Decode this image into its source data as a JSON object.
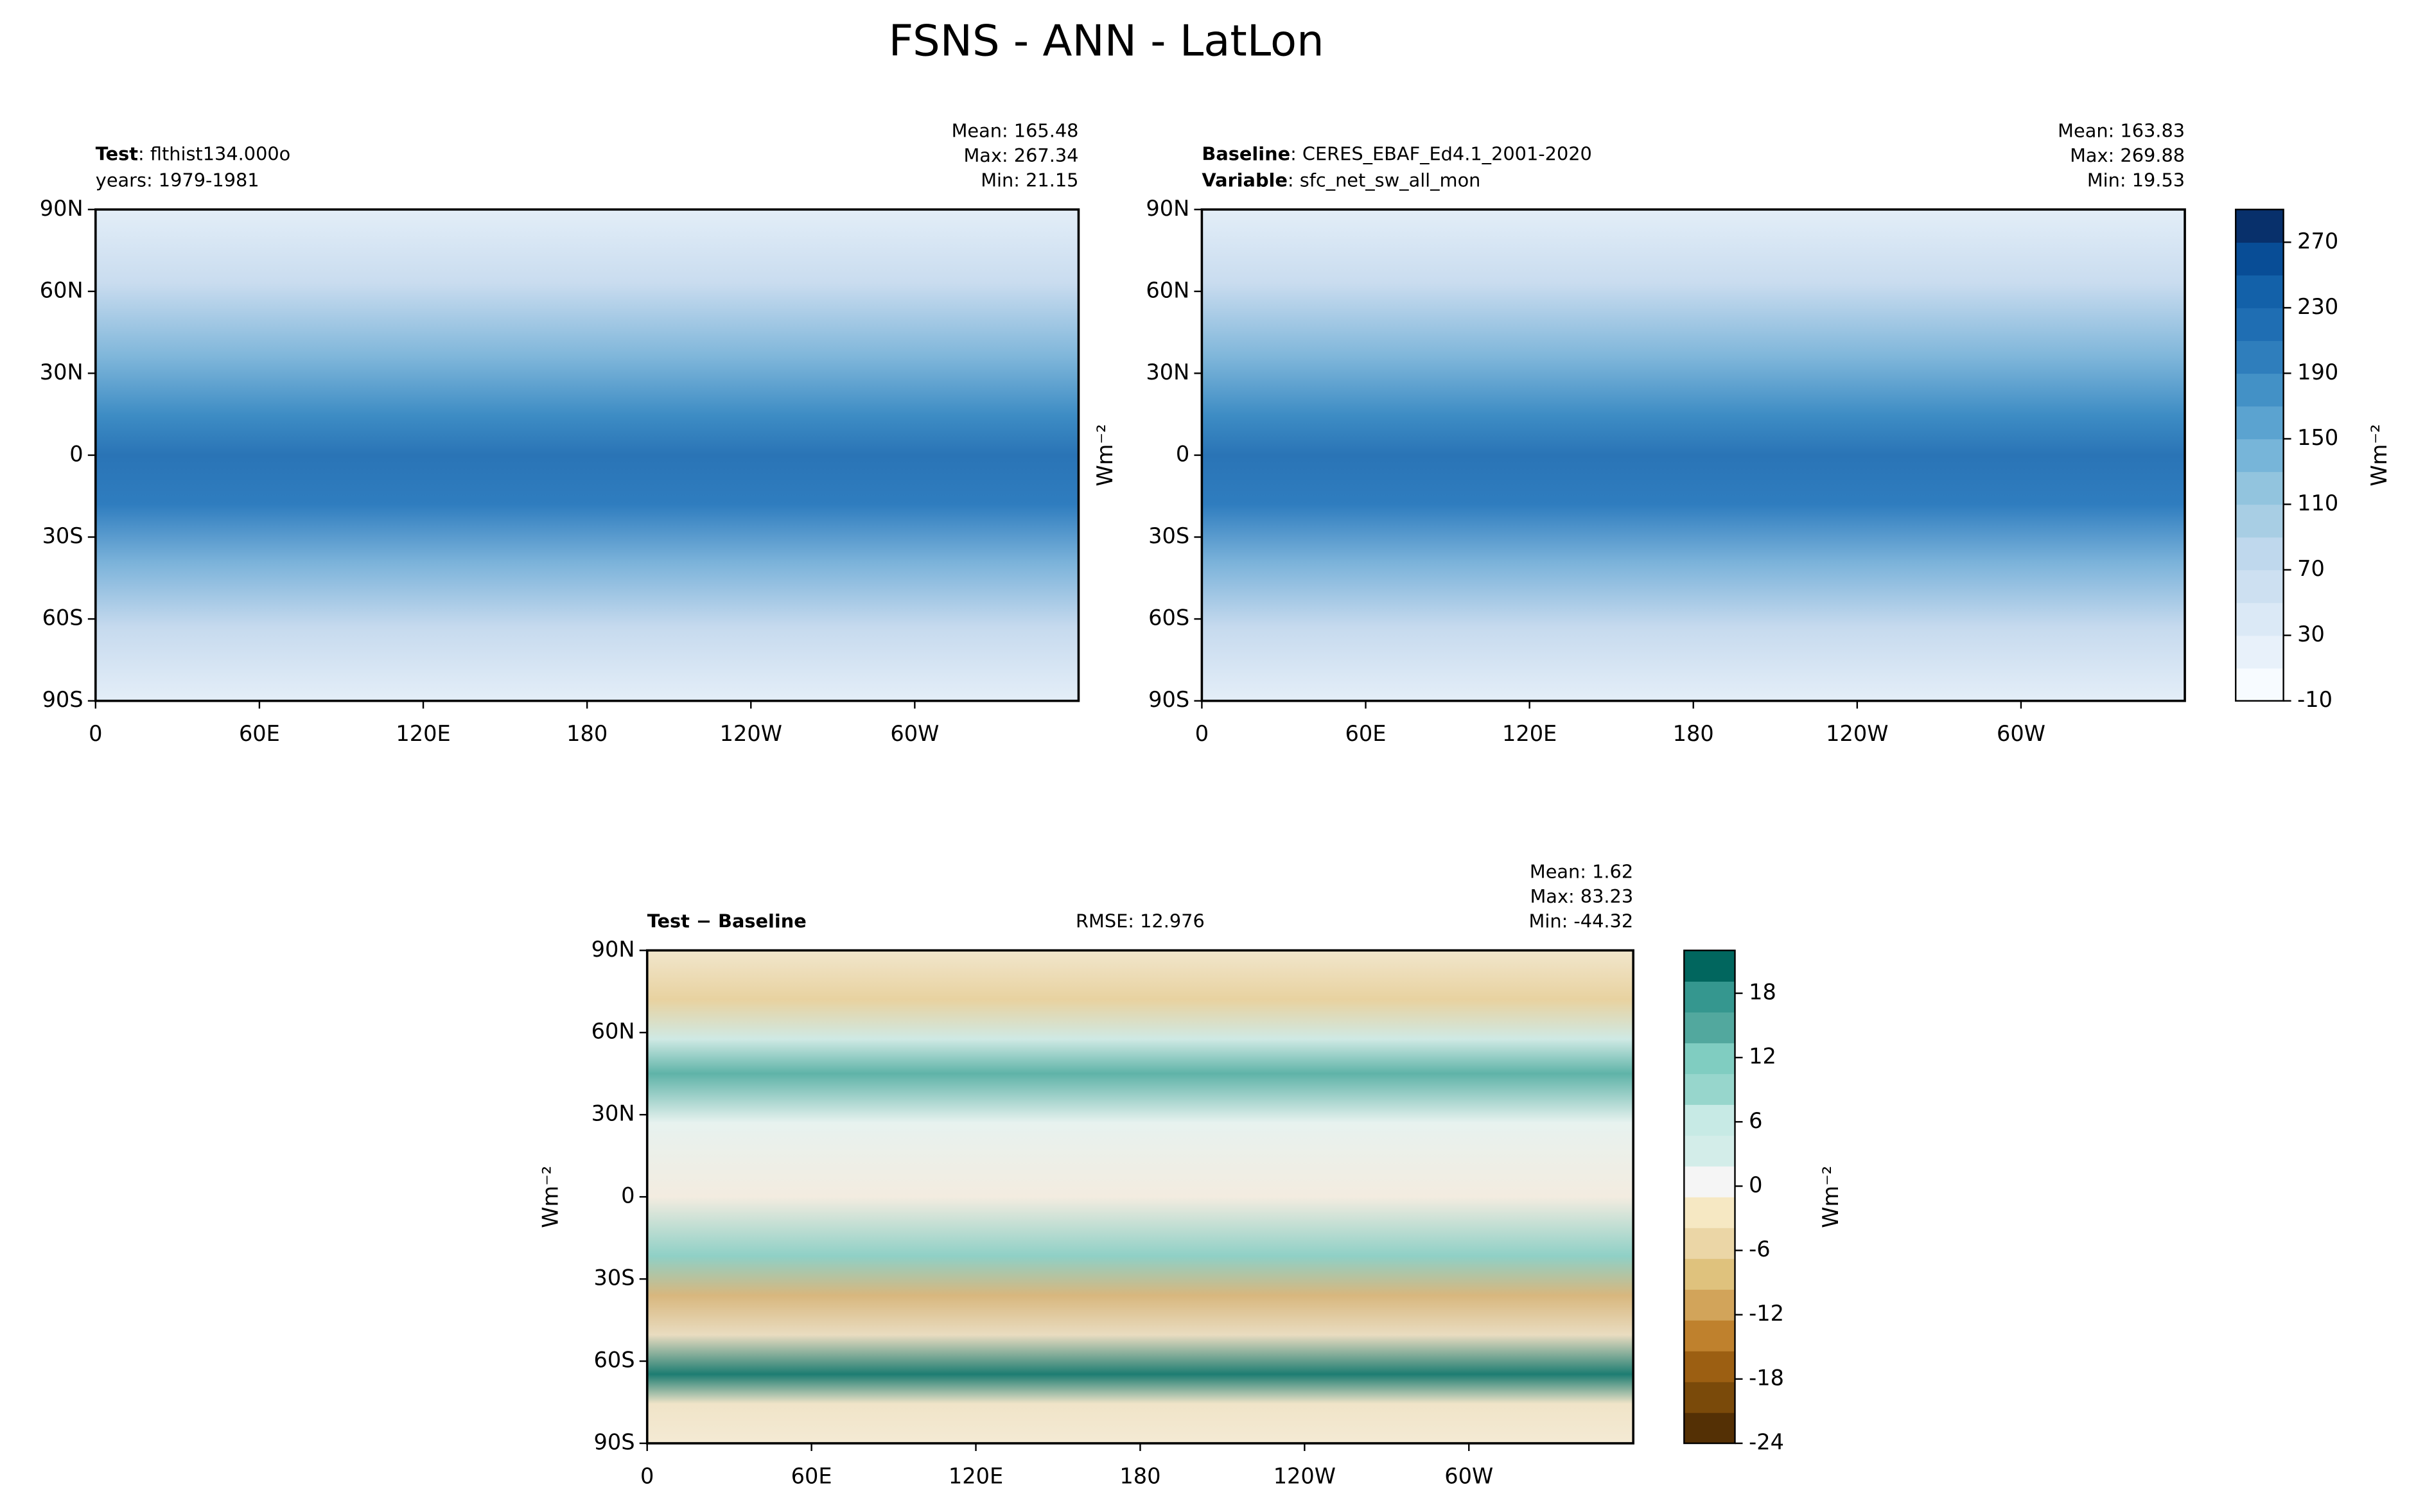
{
  "figure_title": "FSNS - ANN - LatLon",
  "chart_data": [
    {
      "type": "map",
      "header_left": [
        {
          "bold": "Test",
          "text": ": flthist134.000o"
        },
        {
          "text": "years: 1979-1981"
        }
      ],
      "header_right": [
        "Mean: 165.48",
        "Max: 267.34",
        "Min: 21.15"
      ],
      "xlim": [
        0,
        360
      ],
      "ylim": [
        -90,
        90
      ],
      "xticks": [
        0,
        {
          "value": 60,
          "label": "60E"
        },
        {
          "value": 120,
          "label": "120E"
        },
        180,
        {
          "value": 240,
          "label": "120W"
        },
        {
          "value": 300,
          "label": "60W"
        }
      ],
      "yticks": [
        {
          "value": 90,
          "label": "90N"
        },
        {
          "value": 60,
          "label": "60N"
        },
        {
          "value": 30,
          "label": "30N"
        },
        0,
        {
          "value": -30,
          "label": "30S"
        },
        {
          "value": -60,
          "label": "60S"
        },
        {
          "value": -90,
          "label": "90S"
        }
      ]
    },
    {
      "type": "map",
      "header_left": [
        {
          "bold": "Baseline",
          "text": ": CERES_EBAF_Ed4.1_2001-2020"
        },
        {
          "bold": "Variable",
          "text": ": sfc_net_sw_all_mon"
        }
      ],
      "header_right": [
        "Mean: 163.83",
        "Max: 269.88",
        "Min: 19.53"
      ],
      "ylabel": "Wm⁻²",
      "xlim": [
        0,
        360
      ],
      "ylim": [
        -90,
        90
      ],
      "xticks": [
        0,
        {
          "value": 60,
          "label": "60E"
        },
        {
          "value": 120,
          "label": "120E"
        },
        180,
        {
          "value": 240,
          "label": "120W"
        },
        {
          "value": 300,
          "label": "60W"
        }
      ],
      "yticks": [
        {
          "value": 90,
          "label": "90N"
        },
        {
          "value": 60,
          "label": "60N"
        },
        {
          "value": 30,
          "label": "30N"
        },
        0,
        {
          "value": -30,
          "label": "30S"
        },
        {
          "value": -60,
          "label": "60S"
        },
        {
          "value": -90,
          "label": "90S"
        }
      ],
      "colorbar": {
        "label": "Wm⁻²",
        "lim": [
          -10,
          290
        ],
        "ticks": [
          -10,
          30,
          70,
          110,
          150,
          190,
          230,
          270
        ],
        "colors": [
          "#f7fbff",
          "#e8f1fa",
          "#dbe9f6",
          "#cde0f1",
          "#bfd8ed",
          "#a8cee4",
          "#92c4de",
          "#77b5d9",
          "#5ba3d0",
          "#4391c6",
          "#2f7ebc",
          "#1f6eb3",
          "#1361a9",
          "#084d96",
          "#08306b"
        ]
      }
    },
    {
      "type": "map",
      "header_left": [
        {
          "bold": "Test − Baseline"
        }
      ],
      "header_center": "RMSE: 12.976",
      "header_right": [
        "Mean:  1.62",
        "Max: 83.23",
        "Min: -44.32"
      ],
      "ylabel": "Wm⁻²",
      "xlim": [
        0,
        360
      ],
      "ylim": [
        -90,
        90
      ],
      "xticks": [
        0,
        {
          "value": 60,
          "label": "60E"
        },
        {
          "value": 120,
          "label": "120E"
        },
        180,
        {
          "value": 240,
          "label": "120W"
        },
        {
          "value": 300,
          "label": "60W"
        }
      ],
      "yticks": [
        {
          "value": 90,
          "label": "90N"
        },
        {
          "value": 60,
          "label": "60N"
        },
        {
          "value": 30,
          "label": "30N"
        },
        0,
        {
          "value": -30,
          "label": "30S"
        },
        {
          "value": -60,
          "label": "60S"
        },
        {
          "value": -90,
          "label": "90S"
        }
      ],
      "colorbar": {
        "label": "Wm⁻²",
        "lim": [
          -24,
          22
        ],
        "ticks": [
          -24,
          -18,
          -12,
          -6,
          0,
          6,
          12,
          18
        ],
        "colors": [
          "#543005",
          "#7a4a0a",
          "#9c5f12",
          "#bf812d",
          "#d2a45a",
          "#dfc27d",
          "#ebd6a6",
          "#f6e8c3",
          "#f5f5f5",
          "#d3ede9",
          "#c7eae5",
          "#97d6cc",
          "#80cdc1",
          "#52a89e",
          "#35978f",
          "#01665e"
        ]
      }
    }
  ]
}
